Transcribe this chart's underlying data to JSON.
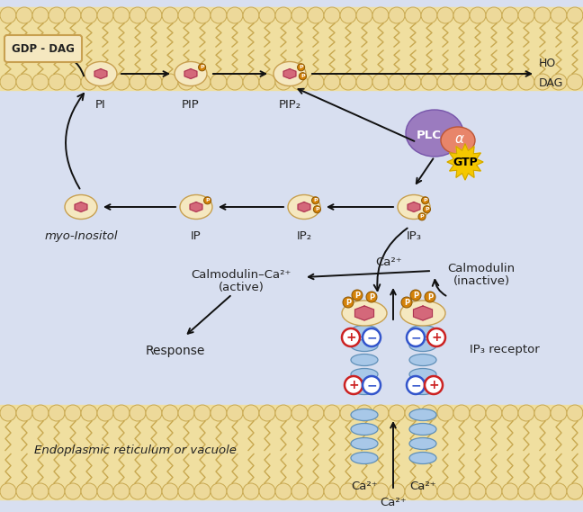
{
  "bg_main": "#d8dff0",
  "membrane_fill": "#f0dfa0",
  "membrane_circle_color": "#edd99a",
  "membrane_circle_edge": "#c8a850",
  "lipid_tail_color": "#c8a850",
  "inositol_fill": "#f5e8c0",
  "inositol_edge": "#c8a050",
  "pink_mol": "#d4687a",
  "pink_mol_edge": "#aa3350",
  "phosphate_fill": "#d4820a",
  "phosphate_edge": "#8a5500",
  "plc_color": "#9b7bbf",
  "alpha_color": "#e8856a",
  "gtp_color": "#f5c800",
  "helix_color": "#a8c8e8",
  "helix_edge": "#6090b8",
  "plus_color": "#cc2222",
  "minus_color": "#3355cc",
  "label_color": "#222222",
  "arrow_color": "#111111",
  "gdp_dag_fill": "#f5e8c0",
  "gdp_dag_edge": "#c8a050",
  "ho_label": "HO",
  "dag_label": "DAG",
  "gdp_dag_label": "GDP - DAG",
  "pi_label": "PI",
  "pip_label": "PIP",
  "pip2_label": "PIP₂",
  "ip3_label": "IP₃",
  "ip2_label": "IP₂",
  "ip_label": "IP",
  "myoinositol_label": "myo-Inositol",
  "calmodulin_active": "Calmodulin–Ca²⁺",
  "calmodulin_active2": "(active)",
  "calmodulin_inactive": "Calmodulin",
  "calmodulin_inactive2": "(inactive)",
  "ca2plus": "Ca²⁺",
  "response_label": "Response",
  "ip3_receptor": "IP₃ receptor",
  "er_label": "Endoplasmic reticulum or vacuole",
  "plc_label": "PLC",
  "alpha_label": "α",
  "gtp_label": "GTP"
}
